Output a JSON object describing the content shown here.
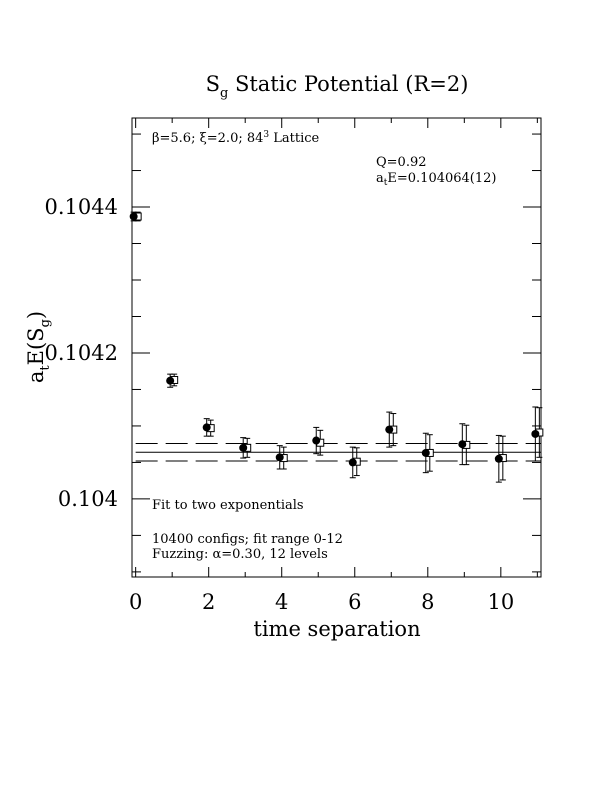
{
  "chart_data": {
    "type": "scatter",
    "title": "S",
    "title_sub": "g",
    "title_rest": " Static Potential (R=2)",
    "xlabel": "time separation",
    "ylabel_main": "a",
    "ylabel_sub1": "t",
    "ylabel_mid": "E(S",
    "ylabel_sub2": "g",
    "ylabel_end": ")",
    "xlim": [
      -0.1,
      11.1
    ],
    "ylim": [
      0.103893,
      0.104522
    ],
    "x_ticks": [
      0,
      2,
      4,
      6,
      8,
      10
    ],
    "x_tick_labels": [
      "0",
      "2",
      "4",
      "6",
      "8",
      "10"
    ],
    "y_ticks": [
      0.104,
      0.1042,
      0.1044
    ],
    "y_tick_labels": [
      "0.104",
      "0.1042",
      "0.1044"
    ],
    "grid": false,
    "annotations": {
      "lattice_beta": "β=5.6; ",
      "lattice_xi": "ξ=2.0; ",
      "lattice_size": "84",
      "lattice_exp": "3",
      "lattice_word": " Lattice",
      "q": "Q=0.92",
      "energy_a": "a",
      "energy_sub": "t",
      "energy_rest": "E=0.104064(12)",
      "fit_text": "Fit to two exponentials",
      "configs_text": "10400 configs; fit range 0-12",
      "fuzz_prefix": "Fuzzing: ",
      "fuzz_alpha": "α",
      "fuzz_rest": "=0.30, 12 levels"
    },
    "fit": {
      "value": 0.104064,
      "upper": 0.104076,
      "lower": 0.104052,
      "x_range": [
        0,
        12
      ]
    },
    "series": [
      {
        "marker": "open-square",
        "x": [
          0.0,
          1.0,
          2.0,
          3.0,
          4.0,
          5.0,
          6.0,
          7.0,
          8.0,
          9.0,
          10.0,
          11.0
        ],
        "y": [
          0.104387,
          0.104163,
          0.104097,
          0.10407,
          0.104056,
          0.104077,
          0.104051,
          0.104095,
          0.104063,
          0.104074,
          0.104056,
          0.104091
        ],
        "err": [
          6e-06,
          8e-06,
          1.1e-05,
          1.3e-05,
          1.5e-05,
          1.7e-05,
          1.9e-05,
          2.2e-05,
          2.5e-05,
          2.7e-05,
          3e-05,
          3.4e-05
        ]
      },
      {
        "marker": "filled-circle",
        "x": [
          0.0,
          1.0,
          2.0,
          3.0,
          4.0,
          5.0,
          6.0,
          7.0,
          8.0,
          9.0,
          10.0,
          11.0
        ],
        "y": [
          0.104387,
          0.104162,
          0.104098,
          0.10407,
          0.104057,
          0.10408,
          0.10405,
          0.104095,
          0.104063,
          0.104075,
          0.104055,
          0.104089
        ],
        "err": [
          6e-06,
          9e-06,
          1.2e-05,
          1.4e-05,
          1.6e-05,
          1.8e-05,
          2.1e-05,
          2.4e-05,
          2.7e-05,
          2.8e-05,
          3.2e-05,
          3.7e-05
        ]
      }
    ]
  }
}
